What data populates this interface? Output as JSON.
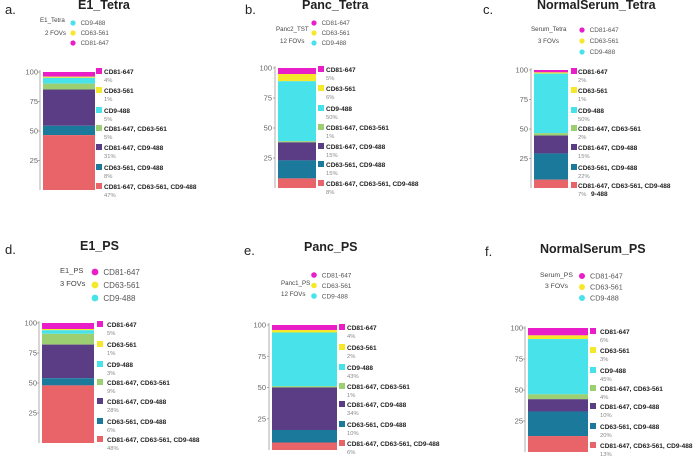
{
  "figure": {
    "colors": {
      "CD81-647": "#e91ec9",
      "CD63-561": "#f5e82a",
      "CD9-488": "#48e2ea",
      "CD81-647, CD63-561": "#9ccf71",
      "CD81-647, CD9-488": "#5b3d86",
      "CD63-561, CD9-488": "#1b7a9c",
      "CD81-647, CD63-561, CD9-488": "#e86468"
    }
  },
  "chart_data": [
    {
      "type": "stacked-bar",
      "panel": "a.",
      "title": "E1_Tetra",
      "sample": "E1_Tetra",
      "fovs": "2 FOVs",
      "legend": [
        "CD9-488",
        "CD63-561",
        "CD81-647"
      ],
      "y_ticks": [
        "100",
        "75",
        "50",
        "25"
      ],
      "ylim": [
        0,
        100
      ],
      "categories": [
        "CD81-647",
        "CD63-561",
        "CD9-488",
        "CD81-647, CD63-561",
        "CD81-647, CD9-488",
        "CD63-561, CD9-488",
        "CD81-647, CD63-561, CD9-488"
      ],
      "values": [
        4,
        1,
        5,
        5,
        31,
        8,
        47
      ],
      "percent_labels": [
        "4%",
        "1%",
        "5%",
        "5%",
        "31%",
        "8%",
        "47%"
      ]
    },
    {
      "type": "stacked-bar",
      "panel": "b.",
      "title": "Panc_Tetra",
      "sample": "Panc2_TST",
      "fovs": "12 FOVs",
      "legend": [
        "CD81-647",
        "CD63-561",
        "CD9-488"
      ],
      "y_ticks": [
        "100",
        "75",
        "50",
        "25"
      ],
      "ylim": [
        0,
        100
      ],
      "categories": [
        "CD81-647",
        "CD63-561",
        "CD9-488",
        "CD81-647, CD63-561",
        "CD81-647, CD9-488",
        "CD63-561, CD9-488",
        "CD81-647, CD63-561, CD9-488"
      ],
      "values": [
        5,
        6,
        50,
        1,
        15,
        15,
        8
      ],
      "percent_labels": [
        "5%",
        "6%",
        "50%",
        "1%",
        "15%",
        "15%",
        "8%"
      ]
    },
    {
      "type": "stacked-bar",
      "panel": "c.",
      "title": "NormalSerum_Tetra",
      "sample": "Serum_Tetra",
      "fovs": "3 FOVs",
      "legend": [
        "CD81-647",
        "CD63-561",
        "CD9-488"
      ],
      "y_ticks": [
        "100",
        "75",
        "50",
        "25"
      ],
      "ylim": [
        0,
        100
      ],
      "categories": [
        "CD81-647",
        "CD63-561",
        "CD9-488",
        "CD81-647, CD63-561",
        "CD81-647, CD9-488",
        "CD63-561, CD9-488",
        "CD81-647, CD63-561, CD9-488"
      ],
      "values": [
        2,
        1,
        50,
        2,
        15,
        22,
        7
      ],
      "percent_labels": [
        "2%",
        "1%",
        "50%",
        "2%",
        "15%",
        "22%",
        "7%"
      ],
      "extra_label": "9-488"
    },
    {
      "type": "stacked-bar",
      "panel": "d.",
      "title": "E1_PS",
      "sample": "E1_PS",
      "fovs": "3 FOVs",
      "legend": [
        "CD81-647",
        "CD63-561",
        "CD9-488"
      ],
      "y_ticks": [
        "100",
        "75",
        "50",
        "25"
      ],
      "ylim": [
        0,
        100
      ],
      "categories": [
        "CD81-647",
        "CD63-561",
        "CD9-488",
        "CD81-647, CD63-561",
        "CD81-647, CD9-488",
        "CD63-561, CD9-488",
        "CD81-647, CD63-561, CD9-488"
      ],
      "values": [
        5,
        1,
        3,
        9,
        28,
        6,
        48
      ],
      "percent_labels": [
        "5%",
        "1%",
        "3%",
        "9%",
        "28%",
        "6%",
        "48%"
      ]
    },
    {
      "type": "stacked-bar",
      "panel": "e.",
      "title": "Panc_PS",
      "sample": "Panc1_PS",
      "fovs": "12 FOVs",
      "legend": [
        "CD81-647",
        "CD63-561",
        "CD9-488"
      ],
      "y_ticks": [
        "100",
        "75",
        "50",
        "25"
      ],
      "ylim": [
        0,
        100
      ],
      "categories": [
        "CD81-647",
        "CD63-561",
        "CD9-488",
        "CD81-647, CD63-561",
        "CD81-647, CD9-488",
        "CD63-561, CD9-488",
        "CD81-647, CD63-561, CD9-488"
      ],
      "values": [
        4,
        2,
        43,
        1,
        34,
        10,
        6
      ],
      "percent_labels": [
        "4%",
        "2%",
        "43%",
        "1%",
        "34%",
        "10%",
        "6%"
      ]
    },
    {
      "type": "stacked-bar",
      "panel": "f.",
      "title": "NormalSerum_PS",
      "sample": "Serum_PS",
      "fovs": "3 FOVs",
      "legend": [
        "CD81-647",
        "CD63-561",
        "CD9-488"
      ],
      "y_ticks": [
        "100",
        "75",
        "50",
        "25"
      ],
      "ylim": [
        0,
        100
      ],
      "categories": [
        "CD81-647",
        "CD63-561",
        "CD9-488",
        "CD81-647, CD63-561",
        "CD81-647, CD9-488",
        "CD63-561, CD9-488",
        "CD81-647, CD63-561, CD9-488"
      ],
      "values": [
        6,
        3,
        45,
        4,
        10,
        20,
        13
      ],
      "percent_labels": [
        "6%",
        "3%",
        "45%",
        "4%",
        "10%",
        "20%",
        "13%"
      ]
    }
  ]
}
